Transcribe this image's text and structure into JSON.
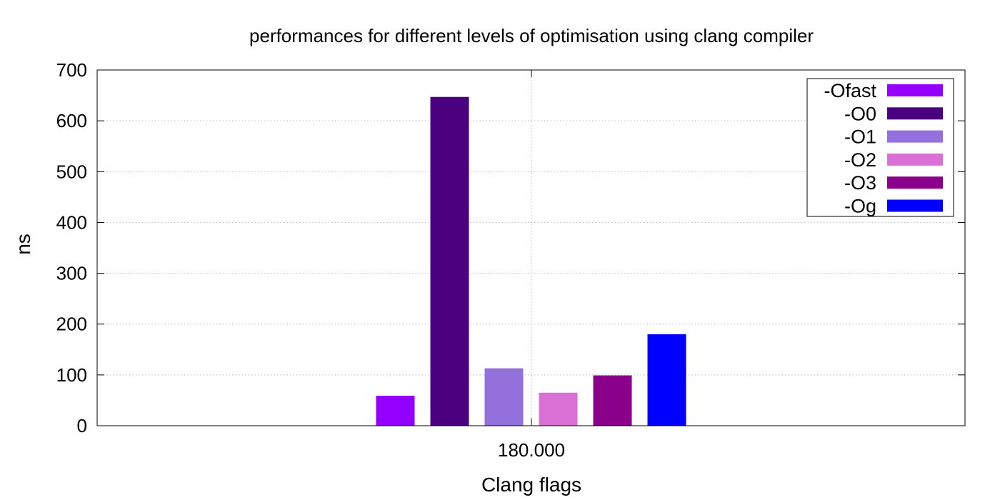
{
  "chart_data": {
    "type": "bar",
    "title": "performances for different levels of optimisation using clang compiler",
    "xlabel": "Clang flags",
    "ylabel": "ns",
    "categories": [
      "180.000"
    ],
    "ylim": [
      0,
      700
    ],
    "yticks": [
      0,
      100,
      200,
      300,
      400,
      500,
      600,
      700
    ],
    "ytick_labels": [
      "0",
      "100",
      "200",
      "300",
      "400",
      "500",
      "600",
      "700"
    ],
    "grid": true,
    "legend_position": "top-right",
    "series": [
      {
        "name": "-Ofast",
        "values": [
          59
        ],
        "color": "#9400FF"
      },
      {
        "name": "-O0",
        "values": [
          647
        ],
        "color": "#4B0080"
      },
      {
        "name": "-O1",
        "values": [
          113
        ],
        "color": "#9370DB"
      },
      {
        "name": "-O2",
        "values": [
          65
        ],
        "color": "#DA70D6"
      },
      {
        "name": "-O3",
        "values": [
          99
        ],
        "color": "#8B008B"
      },
      {
        "name": "-Og",
        "values": [
          180
        ],
        "color": "#0000FF"
      }
    ]
  }
}
